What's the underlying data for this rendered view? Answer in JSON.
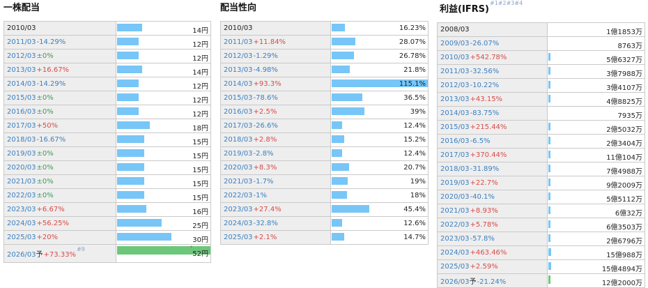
{
  "colors": {
    "up": "#d84a48",
    "down": "#3a7fc0",
    "flat": "#3f9a5a",
    "bar": "#77c6f7",
    "forecast_bar": "#6cc77a"
  },
  "dividend": {
    "title": "一株配当",
    "rows": [
      {
        "year": "2010/03",
        "change": "",
        "dir": "none",
        "value": "14円",
        "level": 0.27
      },
      {
        "year": "2011/03",
        "change": "-14.29%",
        "dir": "down",
        "value": "12円",
        "level": 0.23
      },
      {
        "year": "2012/03",
        "change": "±0%",
        "dir": "flat",
        "value": "12円",
        "level": 0.23
      },
      {
        "year": "2013/03",
        "change": "+16.67%",
        "dir": "up",
        "value": "14円",
        "level": 0.27
      },
      {
        "year": "2014/03",
        "change": "-14.29%",
        "dir": "down",
        "value": "12円",
        "level": 0.23
      },
      {
        "year": "2015/03",
        "change": "±0%",
        "dir": "flat",
        "value": "12円",
        "level": 0.23
      },
      {
        "year": "2016/03",
        "change": "±0%",
        "dir": "flat",
        "value": "12円",
        "level": 0.23
      },
      {
        "year": "2017/03",
        "change": "+50%",
        "dir": "up",
        "value": "18円",
        "level": 0.35
      },
      {
        "year": "2018/03",
        "change": "-16.67%",
        "dir": "down",
        "value": "15円",
        "level": 0.29
      },
      {
        "year": "2019/03",
        "change": "±0%",
        "dir": "flat",
        "value": "15円",
        "level": 0.29
      },
      {
        "year": "2020/03",
        "change": "±0%",
        "dir": "flat",
        "value": "15円",
        "level": 0.29
      },
      {
        "year": "2021/03",
        "change": "±0%",
        "dir": "flat",
        "value": "15円",
        "level": 0.29
      },
      {
        "year": "2022/03",
        "change": "±0%",
        "dir": "flat",
        "value": "15円",
        "level": 0.29
      },
      {
        "year": "2023/03",
        "change": "+6.67%",
        "dir": "up",
        "value": "16円",
        "level": 0.31
      },
      {
        "year": "2024/03",
        "change": "+56.25%",
        "dir": "up",
        "value": "25円",
        "level": 0.48
      },
      {
        "year": "2025/03",
        "change": "+20%",
        "dir": "up",
        "value": "30円",
        "level": 0.58
      }
    ],
    "forecast": {
      "year": "2026/03",
      "mark": "予",
      "change": "+73.33%",
      "dir": "up",
      "note": "#9",
      "value": "52円",
      "value_note": "*",
      "level": 1.0
    }
  },
  "payout": {
    "title": "配当性向",
    "rows": [
      {
        "year": "2010/03",
        "change": "",
        "dir": "none",
        "value": "16.23%",
        "level": 0.141
      },
      {
        "year": "2011/03",
        "change": "+11.84%",
        "dir": "up",
        "value": "28.07%",
        "level": 0.244
      },
      {
        "year": "2012/03",
        "change": "-1.29%",
        "dir": "down",
        "value": "26.78%",
        "level": 0.233
      },
      {
        "year": "2013/03",
        "change": "-4.98%",
        "dir": "down",
        "value": "21.8%",
        "level": 0.189
      },
      {
        "year": "2014/03",
        "change": "+93.3%",
        "dir": "up",
        "value": "115.1%",
        "level": 1.0
      },
      {
        "year": "2015/03",
        "change": "-78.6%",
        "dir": "down",
        "value": "36.5%",
        "level": 0.317
      },
      {
        "year": "2016/03",
        "change": "+2.5%",
        "dir": "up",
        "value": "39%",
        "level": 0.339
      },
      {
        "year": "2017/03",
        "change": "-26.6%",
        "dir": "down",
        "value": "12.4%",
        "level": 0.108
      },
      {
        "year": "2018/03",
        "change": "+2.8%",
        "dir": "up",
        "value": "15.2%",
        "level": 0.132
      },
      {
        "year": "2019/03",
        "change": "-2.8%",
        "dir": "down",
        "value": "12.4%",
        "level": 0.108
      },
      {
        "year": "2020/03",
        "change": "+8.3%",
        "dir": "up",
        "value": "20.7%",
        "level": 0.18
      },
      {
        "year": "2021/03",
        "change": "-1.7%",
        "dir": "down",
        "value": "19%",
        "level": 0.165
      },
      {
        "year": "2022/03",
        "change": "-1%",
        "dir": "down",
        "value": "18%",
        "level": 0.156
      },
      {
        "year": "2023/03",
        "change": "+27.4%",
        "dir": "up",
        "value": "45.4%",
        "level": 0.394
      },
      {
        "year": "2024/03",
        "change": "-32.8%",
        "dir": "down",
        "value": "12.6%",
        "level": 0.109
      },
      {
        "year": "2025/03",
        "change": "+2.1%",
        "dir": "up",
        "value": "14.7%",
        "level": 0.128
      }
    ]
  },
  "profit": {
    "title": "利益(IFRS)",
    "title_notes": "#1#2#3#4",
    "rows": [
      {
        "year": "2008/03",
        "change": "",
        "dir": "none",
        "value": "1億1853万",
        "level": 0.0
      },
      {
        "year": "2009/03",
        "change": "-26.07%",
        "dir": "down",
        "value": "8763万",
        "level": 0.0
      },
      {
        "year": "2010/03",
        "change": "+542.78%",
        "dir": "up",
        "value": "5億6327万",
        "level": 0.02
      },
      {
        "year": "2011/03",
        "change": "-32.56%",
        "dir": "down",
        "value": "3億7988万",
        "level": 0.015
      },
      {
        "year": "2012/03",
        "change": "-10.22%",
        "dir": "down",
        "value": "3億4107万",
        "level": 0.014
      },
      {
        "year": "2013/03",
        "change": "+43.15%",
        "dir": "up",
        "value": "4億8825万",
        "level": 0.018
      },
      {
        "year": "2014/03",
        "change": "-83.75%",
        "dir": "down",
        "value": "7935万",
        "level": 0.0
      },
      {
        "year": "2015/03",
        "change": "+215.44%",
        "dir": "up",
        "value": "2億5032万",
        "level": 0.01
      },
      {
        "year": "2016/03",
        "change": "-6.5%",
        "dir": "down",
        "value": "2億3404万",
        "level": 0.01
      },
      {
        "year": "2017/03",
        "change": "+370.44%",
        "dir": "up",
        "value": "11億104万",
        "level": 0.025
      },
      {
        "year": "2018/03",
        "change": "-31.89%",
        "dir": "down",
        "value": "7億4988万",
        "level": 0.02
      },
      {
        "year": "2019/03",
        "change": "+22.7%",
        "dir": "up",
        "value": "9億2009万",
        "level": 0.022
      },
      {
        "year": "2020/03",
        "change": "-40.1%",
        "dir": "down",
        "value": "5億5112万",
        "level": 0.02
      },
      {
        "year": "2021/03",
        "change": "+8.93%",
        "dir": "up",
        "value": "6億32万",
        "level": 0.02
      },
      {
        "year": "2022/03",
        "change": "+5.78%",
        "dir": "up",
        "value": "6億3503万",
        "level": 0.02
      },
      {
        "year": "2023/03",
        "change": "-57.8%",
        "dir": "down",
        "value": "2億6796万",
        "level": 0.01
      },
      {
        "year": "2024/03",
        "change": "+463.46%",
        "dir": "up",
        "value": "15億988万",
        "level": 0.03
      },
      {
        "year": "2025/03",
        "change": "+2.59%",
        "dir": "up",
        "value": "15億4894万",
        "level": 0.03
      }
    ],
    "forecast": {
      "year": "2026/03",
      "mark": "予",
      "change": "-21.24%",
      "dir": "down",
      "value": "12億2000万",
      "level": 0.025
    }
  }
}
